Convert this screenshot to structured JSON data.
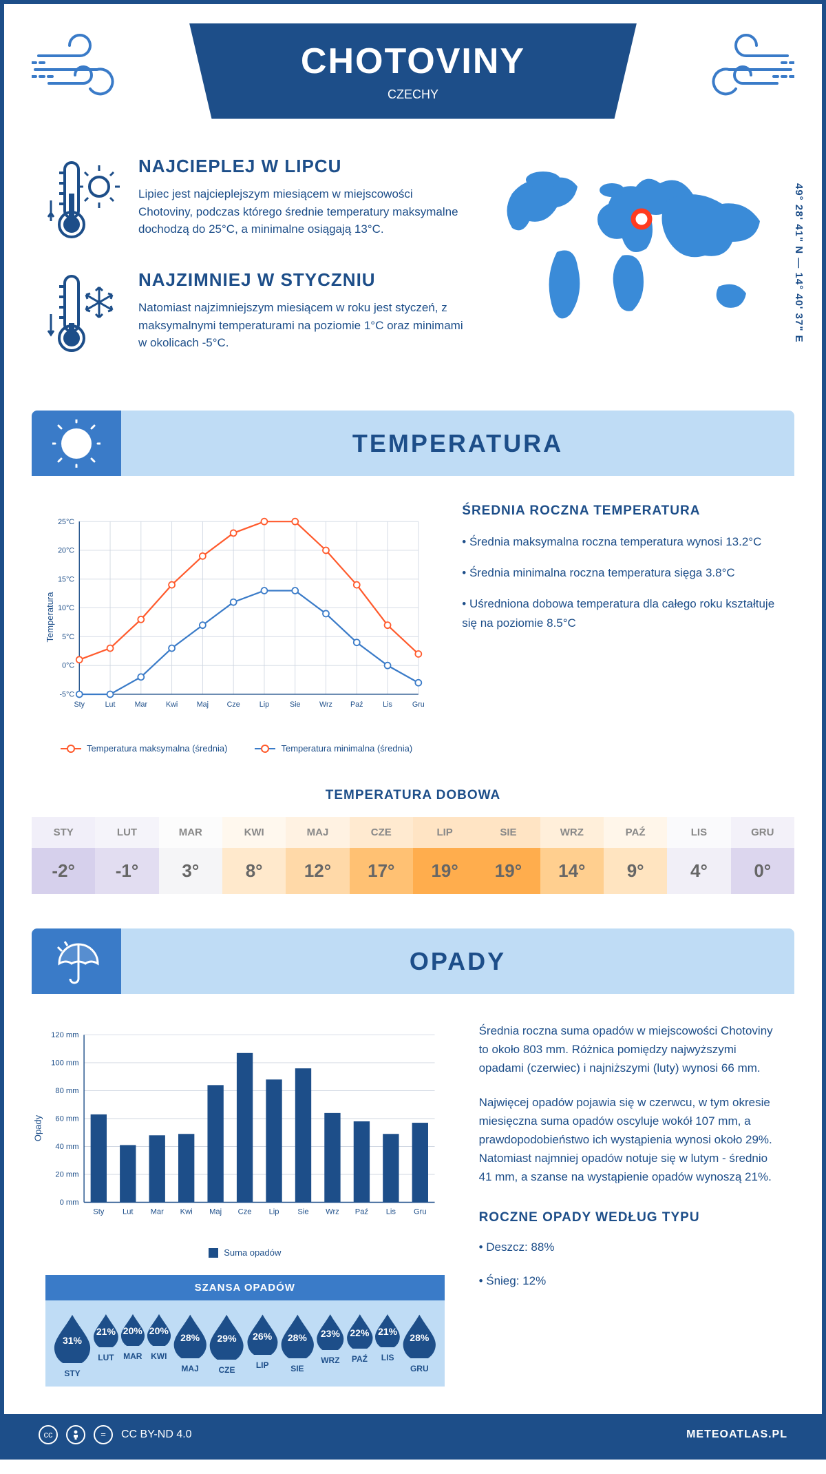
{
  "header": {
    "city": "CHOTOVINY",
    "country": "CZECHY",
    "coordinates": "49° 28' 41\" N — 14° 40' 37\" E"
  },
  "colors": {
    "primary": "#1d4e89",
    "light_blue": "#bfdcf5",
    "mid_blue": "#3a7bc8",
    "max_line": "#ff5a2c",
    "min_line": "#3a7bc8",
    "grid": "#d0d7e2",
    "bar": "#1d4e89",
    "marker": "#ff3b1f",
    "map_fill": "#3a8bd8"
  },
  "facts": {
    "warm": {
      "title": "NAJCIEPLEJ W LIPCU",
      "text": "Lipiec jest najcieplejszym miesiącem w miejscowości Chotoviny, podczas którego średnie temperatury maksymalne dochodzą do 25°C, a minimalne osiągają 13°C."
    },
    "cold": {
      "title": "NAJZIMNIEJ W STYCZNIU",
      "text": "Natomiast najzimniejszym miesiącem w roku jest styczeń, z maksymalnymi temperaturami na poziomie 1°C oraz minimami w okolicach -5°C."
    }
  },
  "months_short": [
    "Sty",
    "Lut",
    "Mar",
    "Kwi",
    "Maj",
    "Cze",
    "Lip",
    "Sie",
    "Wrz",
    "Paź",
    "Lis",
    "Gru"
  ],
  "months_upper": [
    "STY",
    "LUT",
    "MAR",
    "KWI",
    "MAJ",
    "CZE",
    "LIP",
    "SIE",
    "WRZ",
    "PAŹ",
    "LIS",
    "GRU"
  ],
  "temperature": {
    "banner": "TEMPERATURA",
    "chart": {
      "type": "line",
      "ylabel": "Temperatura",
      "ylim": [
        -5,
        25
      ],
      "ytick_step": 5,
      "y_tick_labels": [
        "-5°C",
        "0°C",
        "5°C",
        "10°C",
        "15°C",
        "20°C",
        "25°C"
      ],
      "max_series": [
        1,
        3,
        8,
        14,
        19,
        23,
        25,
        25,
        20,
        14,
        7,
        2
      ],
      "min_series": [
        -5,
        -5,
        -2,
        3,
        7,
        11,
        13,
        13,
        9,
        4,
        0,
        -3
      ],
      "line_width": 2.5,
      "marker": "circle",
      "marker_size": 5,
      "legend_max": "Temperatura maksymalna (średnia)",
      "legend_min": "Temperatura minimalna (średnia)"
    },
    "info": {
      "title": "ŚREDNIA ROCZNA TEMPERATURA",
      "p1": "• Średnia maksymalna roczna temperatura wynosi 13.2°C",
      "p2": "• Średnia minimalna roczna temperatura sięga 3.8°C",
      "p3": "• Uśredniona dobowa temperatura dla całego roku kształtuje się na poziomie 8.5°C"
    },
    "daily": {
      "title": "TEMPERATURA DOBOWA",
      "values": [
        "-2°",
        "-1°",
        "3°",
        "8°",
        "12°",
        "17°",
        "19°",
        "19°",
        "14°",
        "9°",
        "4°",
        "0°"
      ],
      "bg_colors": [
        "#d6d0ec",
        "#e2ddf1",
        "#f5f5f7",
        "#ffe9cc",
        "#ffd9a8",
        "#ffc173",
        "#ffad4d",
        "#ffad4d",
        "#ffcf8f",
        "#ffe4c0",
        "#f1eff7",
        "#dcd6ee"
      ]
    }
  },
  "precip": {
    "banner": "OPADY",
    "chart": {
      "type": "bar",
      "ylabel": "Opady",
      "ylim": [
        0,
        120
      ],
      "ytick_step": 20,
      "y_tick_labels": [
        "0 mm",
        "20 mm",
        "40 mm",
        "60 mm",
        "80 mm",
        "100 mm",
        "120 mm"
      ],
      "values": [
        63,
        41,
        48,
        49,
        84,
        107,
        88,
        96,
        64,
        58,
        49,
        57
      ],
      "bar_width": 0.55,
      "legend": "Suma opadów"
    },
    "info": {
      "p1": "Średnia roczna suma opadów w miejscowości Chotoviny to około 803 mm. Różnica pomiędzy najwyższymi opadami (czerwiec) i najniższymi (luty) wynosi 66 mm.",
      "p2": "Najwięcej opadów pojawia się w czerwcu, w tym okresie miesięczna suma opadów oscyluje wokół 107 mm, a prawdopodobieństwo ich wystąpienia wynosi około 29%. Natomiast najmniej opadów notuje się w lutym - średnio 41 mm, a szanse na wystąpienie opadów wynoszą 21%.",
      "type_title": "ROCZNE OPADY WEDŁUG TYPU",
      "rain": "• Deszcz: 88%",
      "snow": "• Śnieg: 12%"
    },
    "chance": {
      "title": "SZANSA OPADÓW",
      "values": [
        "31%",
        "21%",
        "20%",
        "20%",
        "28%",
        "29%",
        "26%",
        "28%",
        "23%",
        "22%",
        "21%",
        "28%"
      ],
      "raw": [
        31,
        21,
        20,
        20,
        28,
        29,
        26,
        28,
        23,
        22,
        21,
        28
      ],
      "size_min": 38,
      "size_max": 58
    }
  },
  "footer": {
    "license": "CC BY-ND 4.0",
    "site": "METEOATLAS.PL"
  }
}
